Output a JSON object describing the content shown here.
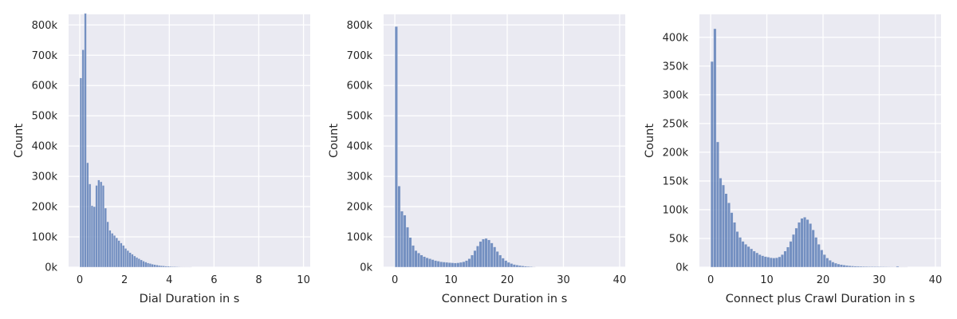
{
  "chart_data": [
    {
      "type": "bar",
      "xlabel": "Dial Duration in s",
      "ylabel": "Count",
      "xlim": [
        -0.5,
        10.3
      ],
      "ylim": [
        0,
        835000
      ],
      "xticks": [
        0,
        2,
        4,
        6,
        8,
        10
      ],
      "xtick_labels": [
        "0",
        "2",
        "4",
        "6",
        "8",
        "10"
      ],
      "yticks": [
        0,
        100000,
        200000,
        300000,
        400000,
        500000,
        600000,
        700000,
        800000
      ],
      "ytick_labels": [
        "0k",
        "100k",
        "200k",
        "300k",
        "400k",
        "500k",
        "600k",
        "700k",
        "800k"
      ],
      "bin_start": 0,
      "bin_width": 0.1,
      "values": [
        625000,
        718000,
        838000,
        345000,
        275000,
        203000,
        200000,
        270000,
        288000,
        282000,
        270000,
        195000,
        150000,
        122000,
        112000,
        105000,
        97000,
        88000,
        80000,
        72000,
        62000,
        55000,
        48000,
        43000,
        37000,
        32000,
        28000,
        24000,
        20000,
        17000,
        14000,
        12000,
        10000,
        8500,
        7200,
        6000,
        5000,
        4200,
        3500,
        3000,
        2500,
        2100,
        1800,
        1500,
        1300,
        1100,
        900,
        800,
        700,
        600
      ],
      "grid": true,
      "color": "#4c72b0",
      "background": "#eaeaf2"
    },
    {
      "type": "bar",
      "xlabel": "Connect Duration in s",
      "ylabel": "Count",
      "xlim": [
        -2,
        41
      ],
      "ylim": [
        0,
        835000
      ],
      "xticks": [
        0,
        10,
        20,
        30,
        40
      ],
      "xtick_labels": [
        "0",
        "10",
        "20",
        "30",
        "40"
      ],
      "yticks": [
        0,
        100000,
        200000,
        300000,
        400000,
        500000,
        600000,
        700000,
        800000
      ],
      "ytick_labels": [
        "0k",
        "100k",
        "200k",
        "300k",
        "400k",
        "500k",
        "600k",
        "700k",
        "800k"
      ],
      "bin_start": 0,
      "bin_width": 0.5,
      "values": [
        795000,
        268000,
        185000,
        172000,
        132000,
        98000,
        72000,
        55000,
        47000,
        40000,
        35000,
        31000,
        28000,
        25000,
        22000,
        20000,
        18000,
        17000,
        16000,
        15000,
        14500,
        14000,
        14500,
        16000,
        18000,
        22000,
        28000,
        40000,
        55000,
        70000,
        85000,
        93000,
        95000,
        90000,
        80000,
        67000,
        52000,
        40000,
        30000,
        22000,
        16000,
        12000,
        9000,
        7000,
        5500,
        4200,
        3200,
        2500,
        1800,
        1200
      ],
      "grid": true,
      "color": "#4c72b0",
      "background": "#eaeaf2"
    },
    {
      "type": "bar",
      "xlabel": "Connect plus Crawl Duration in s",
      "ylabel": "Count",
      "xlim": [
        -2,
        41
      ],
      "ylim": [
        0,
        440000
      ],
      "xticks": [
        0,
        10,
        20,
        30,
        40
      ],
      "xtick_labels": [
        "0",
        "10",
        "20",
        "30",
        "40"
      ],
      "yticks": [
        0,
        50000,
        100000,
        150000,
        200000,
        250000,
        300000,
        350000,
        400000
      ],
      "ytick_labels": [
        "0k",
        "50k",
        "100k",
        "150k",
        "200k",
        "250k",
        "300k",
        "350k",
        "400k"
      ],
      "bin_start": 0,
      "bin_width": 0.5,
      "values": [
        358000,
        415000,
        218000,
        155000,
        143000,
        128000,
        112000,
        95000,
        78000,
        62000,
        52000,
        45000,
        40000,
        36000,
        32000,
        28000,
        25000,
        22000,
        20000,
        18500,
        17500,
        16500,
        16000,
        16500,
        18000,
        22000,
        28000,
        35000,
        45000,
        57000,
        68000,
        78000,
        85000,
        87000,
        83000,
        76000,
        65000,
        52000,
        40000,
        30000,
        22000,
        16000,
        12000,
        9000,
        7000,
        5500,
        4500,
        3600,
        3000,
        2500,
        2100,
        1800,
        1600,
        1400,
        1300,
        1200,
        1100,
        1000,
        950,
        900,
        850,
        800,
        750,
        700,
        650,
        600,
        1500,
        500,
        400,
        350
      ],
      "grid": true,
      "color": "#4c72b0",
      "background": "#eaeaf2"
    }
  ]
}
